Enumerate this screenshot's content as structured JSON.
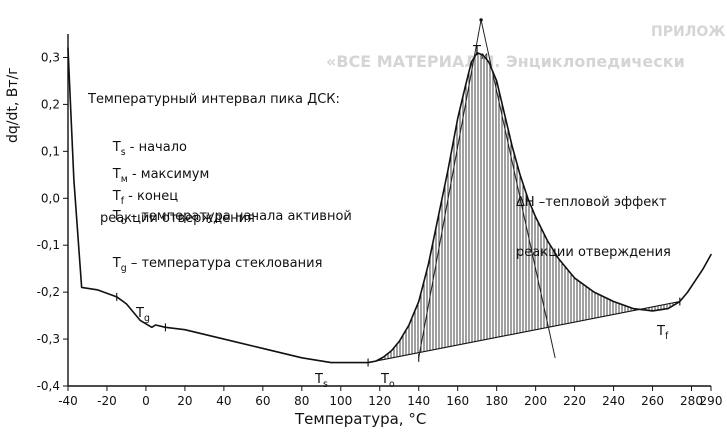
{
  "background": {
    "faint_text_1": "ПРИЛОЖ",
    "faint_text_2": "«ВСЕ МАТЕРИАЛЫ. Энциклопедически"
  },
  "chart_data": {
    "type": "line",
    "title": "",
    "xlabel": "Температура, °C",
    "ylabel": "dq/dt, Вт/г",
    "xlim": [
      -40,
      290
    ],
    "ylim": [
      -0.4,
      0.35
    ],
    "x_ticks": [
      -40,
      -20,
      0,
      20,
      40,
      60,
      80,
      100,
      120,
      140,
      160,
      180,
      200,
      220,
      240,
      260,
      280,
      290
    ],
    "y_ticks": [
      -0.4,
      -0.3,
      -0.2,
      -0.1,
      0.0,
      0.1,
      0.2,
      0.3
    ],
    "y_tick_labels": [
      "-0,4",
      "-0,3",
      "-0,2",
      "-0,1",
      "0,0",
      "0,1",
      "0,2",
      "0,3"
    ],
    "series": [
      {
        "x": [
          -40,
          -37,
          -33,
          -25,
          -15,
          -10,
          -3,
          3,
          5,
          10,
          20,
          40,
          60,
          80,
          95,
          105,
          114,
          118,
          122,
          126,
          130,
          135,
          140,
          145,
          150,
          155,
          160,
          164,
          167,
          170,
          173,
          176,
          180,
          184,
          188,
          192,
          196,
          200,
          206,
          212,
          220,
          230,
          240,
          250,
          260,
          268,
          274,
          278,
          282,
          286,
          290
        ],
        "y": [
          0.32,
          0.04,
          -0.19,
          -0.195,
          -0.21,
          -0.225,
          -0.26,
          -0.275,
          -0.27,
          -0.275,
          -0.28,
          -0.3,
          -0.32,
          -0.34,
          -0.35,
          -0.35,
          -0.35,
          -0.347,
          -0.338,
          -0.325,
          -0.305,
          -0.27,
          -0.22,
          -0.14,
          -0.04,
          0.06,
          0.17,
          0.24,
          0.29,
          0.31,
          0.305,
          0.29,
          0.25,
          0.18,
          0.11,
          0.05,
          0.0,
          -0.04,
          -0.09,
          -0.13,
          -0.17,
          -0.2,
          -0.22,
          -0.235,
          -0.24,
          -0.235,
          -0.22,
          -0.2,
          -0.175,
          -0.15,
          -0.12
        ]
      }
    ],
    "baseline_points": [
      {
        "x": 114,
        "y": -0.35
      },
      {
        "x": 274,
        "y": -0.22
      }
    ],
    "tangent_peak": {
      "x": 172,
      "y": 0.38
    },
    "tangent_lines": [
      {
        "x1": 140,
        "y1": -0.34,
        "x2": 172,
        "y2": 0.38
      },
      {
        "x1": 172,
        "y1": 0.38,
        "x2": 210,
        "y2": -0.34
      }
    ],
    "annotations": {
      "legend_title": "Температурный интервал пика ДСК:",
      "ts": {
        "symbol": "T",
        "sub": "s",
        "text": " - начало"
      },
      "tm": {
        "symbol": "T",
        "sub": "м",
        "text": " - максимум"
      },
      "tf": {
        "symbol": "T",
        "sub": "f",
        "text": " - конец"
      },
      "to": {
        "symbol": "T",
        "sub": "o",
        "text": " – температура начала активной"
      },
      "to_cont": "реакции отверждения",
      "tg": {
        "symbol": "T",
        "sub": "g",
        "text": " – температура стеклования"
      },
      "dh_line1": "ΔH –тепловой эффект",
      "dh_line2": "реакции отверждения",
      "point_tm": "T",
      "point_tm_sub": "м",
      "point_tg": "T",
      "point_tg_sub": "g",
      "point_ts": "T",
      "point_ts_sub": "s",
      "point_to": "T",
      "point_to_sub": "o",
      "point_tf": "T",
      "point_tf_sub": "f"
    }
  }
}
